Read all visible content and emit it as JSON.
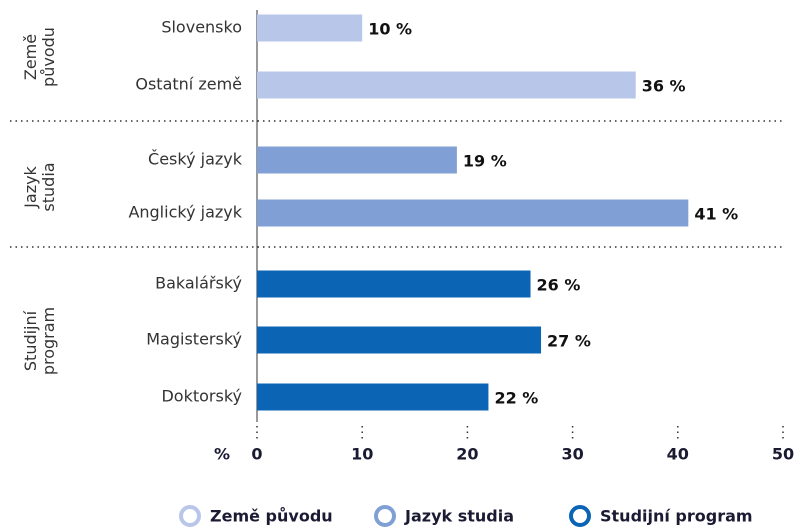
{
  "chart_data": {
    "type": "bar",
    "orientation": "horizontal",
    "x_label": "%",
    "xlim": [
      0,
      50
    ],
    "xticks": [
      0,
      10,
      20,
      30,
      40,
      50
    ],
    "series": [
      {
        "name": "Země původu",
        "color": "#b8c7e9",
        "categories": [
          "Slovensko",
          "Ostatní země"
        ],
        "values": [
          10,
          36
        ],
        "value_labels": [
          "10 %",
          "36 %"
        ]
      },
      {
        "name": "Jazyk studia",
        "color": "#7f9fd5",
        "categories": [
          "Český jazyk",
          "Anglický jazyk"
        ],
        "values": [
          19,
          41
        ],
        "value_labels": [
          "19 %",
          "41 %"
        ]
      },
      {
        "name": "Studijní program",
        "color": "#0b65b4",
        "categories": [
          "Bakalářský",
          "Magisterský",
          "Doktorský"
        ],
        "values": [
          26,
          27,
          22
        ],
        "value_labels": [
          "26 %",
          "27 %",
          "22 %"
        ]
      }
    ]
  }
}
